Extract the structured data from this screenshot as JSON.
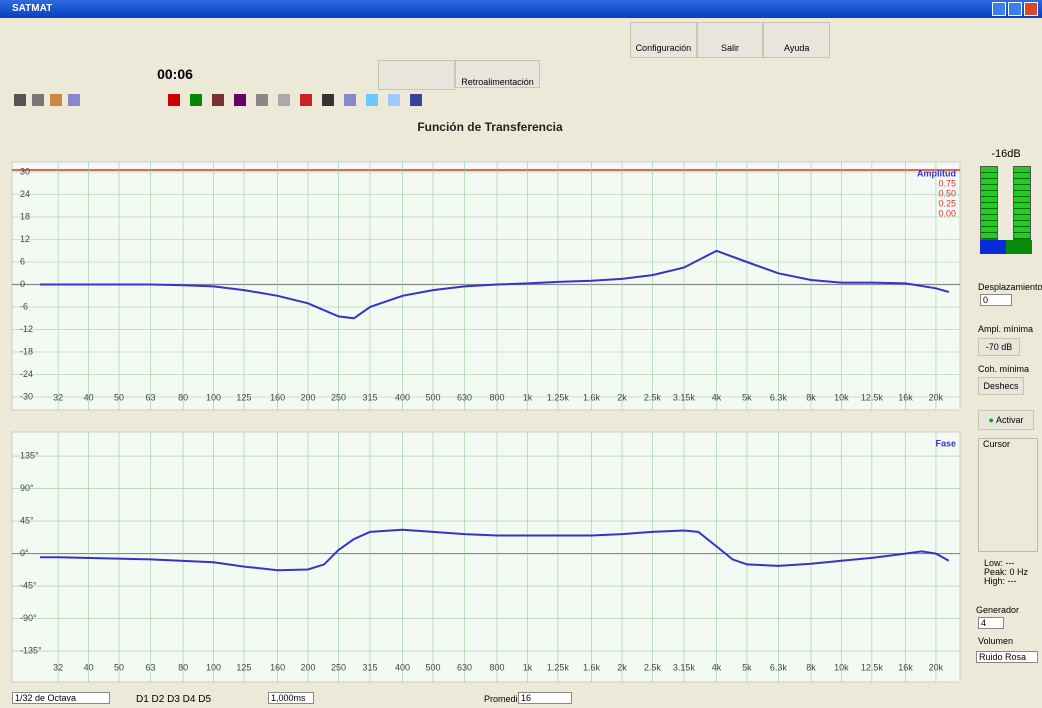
{
  "window": {
    "title": "SATMAT"
  },
  "toolbar": {
    "top_buttons": [
      "Configuración",
      "Salir",
      "Ayuda"
    ],
    "timer": "00:06",
    "mode_button": "Retroalimentación"
  },
  "chart_data": [
    {
      "type": "line",
      "title": "Función de Transferencia",
      "xscale": "log",
      "grid": true,
      "x": [
        28,
        32,
        40,
        50,
        63,
        80,
        100,
        125,
        160,
        200,
        250,
        280,
        315,
        400,
        500,
        630,
        800,
        1000,
        1250,
        1600,
        2000,
        2500,
        3150,
        4000,
        5000,
        6300,
        8000,
        10000,
        12500,
        16000,
        20000,
        22000
      ],
      "series": [
        {
          "name": "Amplitud",
          "color": "#3434c8",
          "values": [
            0,
            0,
            0,
            0,
            0,
            -0.2,
            -0.5,
            -1.5,
            -3,
            -5,
            -8.5,
            -9,
            -6,
            -3,
            -1.5,
            -0.5,
            0,
            0.3,
            0.7,
            1,
            1.5,
            2.5,
            4.5,
            9,
            6,
            3,
            1.2,
            0.5,
            0.5,
            0.3,
            -1,
            -2
          ]
        }
      ],
      "xlim": [
        27,
        23000
      ],
      "xticks": [
        32,
        40,
        50,
        63,
        80,
        100,
        125,
        160,
        200,
        250,
        315,
        400,
        500,
        630,
        800,
        {
          "value": 1000,
          "label": "1k"
        },
        {
          "value": 1250,
          "label": "1.25k"
        },
        {
          "value": 1600,
          "label": "1.6k"
        },
        {
          "value": 2000,
          "label": "2k"
        },
        {
          "value": 2500,
          "label": "2.5k"
        },
        {
          "value": 3150,
          "label": "3.15k"
        },
        {
          "value": 4000,
          "label": "4k"
        },
        {
          "value": 5000,
          "label": "5k"
        },
        {
          "value": 6300,
          "label": "6.3k"
        },
        {
          "value": 8000,
          "label": "8k"
        },
        {
          "value": 10000,
          "label": "10k"
        },
        {
          "value": 12500,
          "label": "12.5k"
        },
        {
          "value": 16000,
          "label": "16k"
        },
        {
          "value": 20000,
          "label": "20k"
        }
      ],
      "ylim": [
        -30,
        30
      ],
      "yticks": [
        30,
        24,
        18,
        12,
        6,
        0,
        -6,
        -12,
        -18,
        -24,
        -30
      ]
    },
    {
      "type": "line",
      "xscale": "log",
      "grid": true,
      "x": [
        28,
        32,
        63,
        100,
        125,
        160,
        200,
        225,
        250,
        280,
        315,
        400,
        500,
        630,
        800,
        1000,
        1600,
        2000,
        2500,
        3150,
        3500,
        4000,
        4500,
        5000,
        6300,
        8000,
        10000,
        12500,
        16000,
        18000,
        20000,
        22000
      ],
      "series": [
        {
          "name": "Fase",
          "color": "#3434c8",
          "values": [
            -5,
            -5,
            -8,
            -12,
            -18,
            -23,
            -22,
            -15,
            5,
            20,
            30,
            33,
            30,
            27,
            25,
            25,
            25,
            27,
            30,
            32,
            30,
            10,
            -8,
            -15,
            -17,
            -14,
            -10,
            -6,
            0,
            3,
            0,
            -10
          ]
        }
      ],
      "xlim": [
        27,
        23000
      ],
      "xticks": [
        32,
        40,
        50,
        63,
        80,
        100,
        125,
        160,
        200,
        250,
        315,
        400,
        500,
        630,
        800,
        {
          "value": 1000,
          "label": "1k"
        },
        {
          "value": 1250,
          "label": "1.25k"
        },
        {
          "value": 1600,
          "label": "1.6k"
        },
        {
          "value": 2000,
          "label": "2k"
        },
        {
          "value": 2500,
          "label": "2.5k"
        },
        {
          "value": 3150,
          "label": "3.15k"
        },
        {
          "value": 4000,
          "label": "4k"
        },
        {
          "value": 5000,
          "label": "5k"
        },
        {
          "value": 6300,
          "label": "6.3k"
        },
        {
          "value": 8000,
          "label": "8k"
        },
        {
          "value": 10000,
          "label": "10k"
        },
        {
          "value": 12500,
          "label": "12.5k"
        },
        {
          "value": 16000,
          "label": "16k"
        },
        {
          "value": 20000,
          "label": "20k"
        }
      ],
      "ylim": [
        -175,
        160
      ],
      "yticks": [
        {
          "value": 135,
          "label": "135°"
        },
        {
          "value": 90,
          "label": "90°"
        },
        {
          "value": 45,
          "label": "45°"
        },
        {
          "value": 0,
          "label": "0°"
        },
        {
          "value": -45,
          "label": "-45°"
        },
        {
          "value": -90,
          "label": "-90°"
        },
        {
          "value": -135,
          "label": "-135°"
        }
      ]
    }
  ],
  "coherence_labels": [
    "0.75",
    "0.50",
    "0.25",
    "0.00"
  ],
  "right_panel": {
    "meter": "-16dB",
    "offset_label": "Desplazamiento",
    "offset_value": "0",
    "min_ampl_label": "Ampl. mínima",
    "min_ampl_value": "-70 dB",
    "min_coh_label": "Coh. mínima",
    "min_coh_value": "Deshecs",
    "activate": "Activar",
    "cursor": "Cursor",
    "low": "Low: ---",
    "peak": "Peak: 0 Hz",
    "high": "High: ---",
    "generator": "Generador",
    "generator_value": "4",
    "volume": "Volumen",
    "noise": "Ruido Rosa"
  },
  "status_bar": {
    "resolution": "1/32 de Octava",
    "delays": "D1 D2 D3 D4 D5",
    "delay_value": "1,000ms",
    "averages_label": "Promedios",
    "averages_value": "16"
  }
}
